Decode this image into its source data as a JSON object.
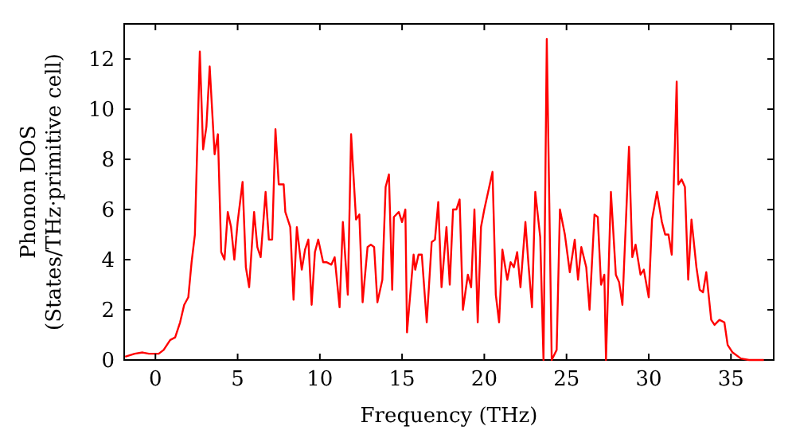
{
  "chart_data": {
    "type": "line",
    "xlabel": "Frequency (THz)",
    "ylabel": "Phonon DOS\n(States/THz·primitive cell)",
    "xlim": [
      -1.9,
      37.6
    ],
    "ylim": [
      0,
      13.4
    ],
    "xticks": [
      0,
      5,
      10,
      15,
      20,
      25,
      30,
      35
    ],
    "yticks": [
      0,
      2,
      4,
      6,
      8,
      10,
      12
    ],
    "grid": false,
    "marker": "none",
    "line_style": "solid",
    "series": [
      {
        "color": "#ff0000",
        "x": [
          -1.84,
          -1.26,
          -0.78,
          -0.4,
          0.2,
          0.5,
          0.9,
          1.2,
          1.5,
          1.75,
          2.0,
          2.2,
          2.4,
          2.7,
          2.9,
          3.1,
          3.3,
          3.6,
          3.8,
          4.0,
          4.2,
          4.4,
          4.6,
          4.8,
          5.0,
          5.3,
          5.5,
          5.7,
          6.0,
          6.2,
          6.4,
          6.7,
          6.9,
          7.1,
          7.3,
          7.5,
          7.8,
          7.9,
          8.2,
          8.4,
          8.6,
          8.9,
          9.1,
          9.3,
          9.5,
          9.7,
          9.9,
          10.2,
          10.4,
          10.7,
          10.9,
          11.2,
          11.4,
          11.7,
          11.9,
          12.2,
          12.4,
          12.6,
          12.9,
          13.1,
          13.3,
          13.5,
          13.8,
          14.0,
          14.2,
          14.4,
          14.5,
          14.8,
          15.0,
          15.2,
          15.3,
          15.7,
          15.8,
          16.0,
          16.2,
          16.5,
          16.8,
          17.0,
          17.2,
          17.4,
          17.7,
          17.9,
          18.1,
          18.3,
          18.5,
          18.7,
          19.0,
          19.2,
          19.4,
          19.6,
          19.8,
          20.0,
          20.5,
          20.7,
          20.9,
          21.1,
          21.4,
          21.6,
          21.8,
          22.0,
          22.2,
          22.5,
          22.7,
          22.9,
          23.1,
          23.4,
          23.6,
          23.8,
          24.1,
          24.4,
          24.6,
          24.9,
          25.2,
          25.5,
          25.7,
          25.9,
          26.2,
          26.4,
          26.7,
          26.9,
          27.1,
          27.3,
          27.4,
          27.7,
          28.0,
          28.2,
          28.4,
          28.8,
          29.0,
          29.2,
          29.5,
          29.7,
          30.0,
          30.2,
          30.5,
          30.8,
          31.0,
          31.2,
          31.4,
          31.7,
          31.8,
          32.0,
          32.2,
          32.4,
          32.6,
          32.9,
          33.1,
          33.3,
          33.5,
          33.8,
          34.0,
          34.3,
          34.6,
          34.8,
          35.1,
          35.6,
          36.1,
          37.0
        ],
        "values": [
          0.13,
          0.25,
          0.3,
          0.25,
          0.25,
          0.4,
          0.8,
          0.9,
          1.5,
          2.2,
          2.5,
          3.9,
          5.0,
          12.3,
          8.4,
          9.3,
          11.7,
          8.2,
          9.0,
          4.3,
          4.0,
          5.9,
          5.3,
          4.0,
          5.5,
          7.1,
          3.7,
          2.9,
          5.9,
          4.5,
          4.1,
          6.7,
          4.8,
          4.8,
          9.2,
          7.0,
          7.0,
          5.9,
          5.3,
          2.4,
          5.3,
          3.6,
          4.4,
          4.8,
          2.2,
          4.3,
          4.8,
          3.9,
          3.9,
          3.8,
          4.1,
          2.1,
          5.5,
          2.6,
          9.0,
          5.6,
          5.8,
          2.3,
          4.5,
          4.6,
          4.5,
          2.3,
          3.2,
          6.9,
          7.4,
          2.8,
          5.7,
          5.9,
          5.5,
          6.0,
          1.1,
          4.2,
          3.6,
          4.2,
          4.2,
          1.5,
          4.7,
          4.8,
          6.3,
          2.9,
          5.3,
          3.0,
          6.0,
          6.0,
          6.4,
          2.0,
          3.4,
          2.9,
          6.0,
          1.5,
          5.3,
          6.0,
          7.5,
          2.6,
          1.5,
          4.4,
          3.2,
          3.9,
          3.7,
          4.3,
          2.9,
          5.5,
          3.7,
          2.1,
          6.7,
          4.9,
          0,
          12.8,
          0,
          0.4,
          6.0,
          5.0,
          3.5,
          4.8,
          3.2,
          4.5,
          3.7,
          2.0,
          5.8,
          5.7,
          3.0,
          3.4,
          0,
          6.7,
          3.4,
          3.1,
          2.2,
          8.5,
          4.1,
          4.6,
          3.4,
          3.6,
          2.5,
          5.6,
          6.7,
          5.5,
          5.0,
          5.0,
          4.2,
          11.1,
          7.0,
          7.2,
          6.9,
          3.2,
          5.6,
          3.7,
          2.8,
          2.7,
          3.5,
          1.6,
          1.4,
          1.6,
          1.5,
          0.6,
          0.3,
          0.06,
          0,
          0
        ]
      }
    ]
  }
}
